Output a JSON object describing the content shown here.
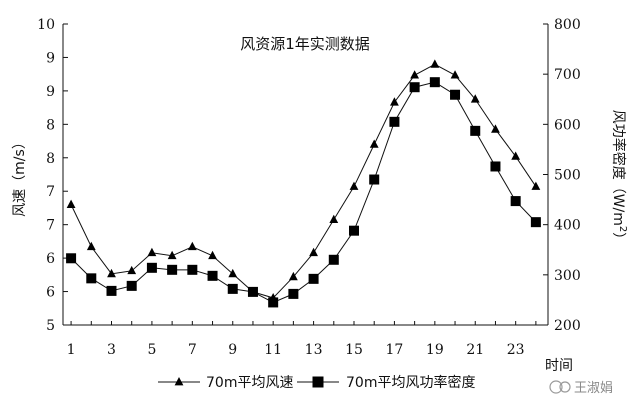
{
  "chart_data": {
    "type": "line",
    "title": "风资源1年实测数据",
    "xlabel": "时间",
    "ylabel_left": "风速（m/s）",
    "ylabel_right_parts": [
      "风功率密度（W/m",
      "2",
      "）"
    ],
    "x": [
      1,
      2,
      3,
      4,
      5,
      6,
      7,
      8,
      9,
      10,
      11,
      12,
      13,
      14,
      15,
      16,
      17,
      18,
      19,
      20,
      21,
      22,
      23,
      24
    ],
    "x_tick_labels": [
      "1",
      "3",
      "5",
      "7",
      "9",
      "11",
      "13",
      "15",
      "17",
      "19",
      "21",
      "23"
    ],
    "x_tick_values": [
      1,
      3,
      5,
      7,
      9,
      11,
      13,
      15,
      17,
      19,
      21,
      23
    ],
    "y_left_tick_labels": [
      "5",
      "6",
      "6",
      "7",
      "7",
      "8",
      "8",
      "9",
      "9",
      "10"
    ],
    "y_right_tick_labels": [
      "200",
      "300",
      "400",
      "500",
      "600",
      "700",
      "800"
    ],
    "y_right_tick_values": [
      200,
      300,
      400,
      500,
      600,
      700,
      800
    ],
    "ylim_left": [
      5,
      10
    ],
    "ylim_right": [
      200,
      800
    ],
    "grid": false,
    "legend_position": "bottom",
    "series": [
      {
        "name": "70m平均风速",
        "axis": "left",
        "marker": "triangle",
        "values": [
          7.0,
          6.3,
          5.85,
          5.9,
          6.2,
          6.15,
          6.3,
          6.15,
          5.85,
          5.55,
          5.45,
          5.8,
          6.2,
          6.75,
          7.3,
          8.0,
          8.7,
          9.15,
          9.33,
          9.15,
          8.75,
          8.25,
          7.8,
          7.3
        ]
      },
      {
        "name": "70m平均风功率密度",
        "axis": "right",
        "marker": "square",
        "values": [
          333,
          293,
          268,
          278,
          314,
          310,
          310,
          298,
          272,
          266,
          245,
          262,
          292,
          330,
          388,
          490,
          605,
          674,
          684,
          659,
          587,
          516,
          447,
          405
        ]
      }
    ]
  },
  "watermark": "王淑娟",
  "colors": {
    "line": "#111111",
    "marker": "#000000",
    "axis": "#111111"
  }
}
